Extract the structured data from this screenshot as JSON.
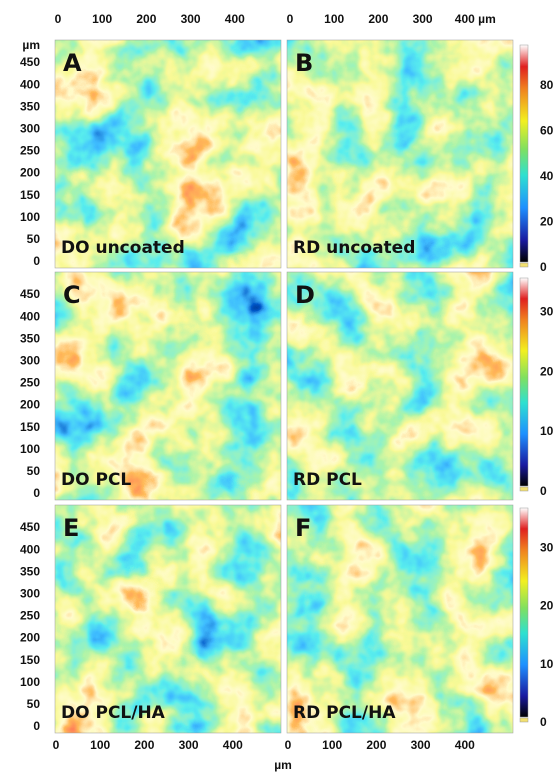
{
  "top_axis": {
    "left_ticks": [
      "0",
      "100",
      "200",
      "300",
      "400"
    ],
    "right_ticks": [
      "0",
      "100",
      "200",
      "300",
      "400 µm"
    ]
  },
  "y_axis_unit": "µm",
  "rows": [
    {
      "y_ticks": [
        "450",
        "400",
        "350",
        "300",
        "250",
        "200",
        "150",
        "100",
        "50",
        "0"
      ],
      "colorbar_ticks": [
        "80",
        "60",
        "40",
        "20",
        "0"
      ],
      "panels": [
        {
          "letter": "A",
          "caption": "DO uncoated"
        },
        {
          "letter": "B",
          "caption": "RD uncoated"
        }
      ]
    },
    {
      "y_ticks": [
        "450",
        "400",
        "350",
        "300",
        "250",
        "200",
        "150",
        "100",
        "50",
        "0"
      ],
      "colorbar_ticks": [
        "30",
        "20",
        "10",
        "0"
      ],
      "panels": [
        {
          "letter": "C",
          "caption": "DO PCL"
        },
        {
          "letter": "D",
          "caption": "RD PCL"
        }
      ]
    },
    {
      "y_ticks": [
        "450",
        "400",
        "350",
        "300",
        "250",
        "200",
        "150",
        "100",
        "50",
        "0"
      ],
      "colorbar_ticks": [
        "30",
        "20",
        "10",
        "0"
      ],
      "panels": [
        {
          "letter": "E",
          "caption": "DO PCL/HA"
        },
        {
          "letter": "F",
          "caption": "RD PCL/HA"
        }
      ]
    }
  ],
  "bottom_axis": {
    "left_ticks": [
      "0",
      "100",
      "200",
      "300",
      "400"
    ],
    "right_ticks": [
      "0",
      "100",
      "200",
      "300",
      "400"
    ],
    "unit": "µm"
  }
}
